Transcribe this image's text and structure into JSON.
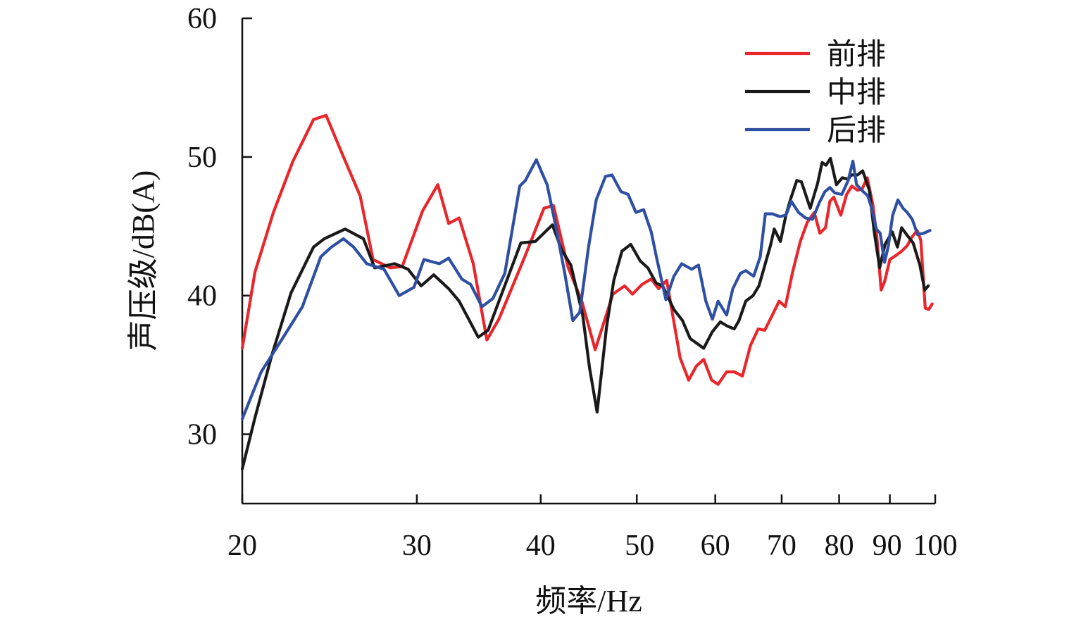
{
  "chart_data": {
    "type": "line",
    "xlabel": "频率/Hz",
    "ylabel": "声压级/dB(A)",
    "x_scale": "log",
    "xlim": [
      20,
      100
    ],
    "ylim": [
      25,
      60
    ],
    "x_ticks": [
      20,
      30,
      40,
      50,
      60,
      70,
      80,
      90,
      100
    ],
    "x_tick_labels": [
      "20",
      "30",
      "40",
      "50",
      "60",
      "70",
      "80",
      "90",
      "100"
    ],
    "y_ticks": [
      30,
      40,
      50,
      60
    ],
    "y_tick_labels": [
      "30",
      "40",
      "50",
      "60"
    ],
    "grid": false,
    "legend_position": "top-right",
    "series": [
      {
        "name": "前排",
        "color": "#e8262b",
        "points": [
          [
            20,
            36.2
          ],
          [
            20.6,
            41.7
          ],
          [
            21.5,
            46.0
          ],
          [
            22.5,
            49.7
          ],
          [
            23.6,
            52.7
          ],
          [
            24.3,
            53.0
          ],
          [
            25.2,
            50.3
          ],
          [
            26.3,
            47.2
          ],
          [
            27.1,
            42.6
          ],
          [
            28.2,
            42.0
          ],
          [
            29.0,
            42.1
          ],
          [
            30.4,
            46.1
          ],
          [
            31.5,
            48.0
          ],
          [
            32.3,
            45.2
          ],
          [
            33.1,
            45.6
          ],
          [
            34.2,
            42.3
          ],
          [
            35.3,
            36.8
          ],
          [
            36.3,
            38.3
          ],
          [
            38.6,
            42.9
          ],
          [
            40.3,
            46.3
          ],
          [
            41.2,
            46.5
          ],
          [
            42.6,
            42.1
          ],
          [
            44.0,
            39.6
          ],
          [
            45.4,
            36.1
          ],
          [
            47.3,
            40.1
          ],
          [
            48.6,
            40.7
          ],
          [
            49.5,
            40.1
          ],
          [
            50.6,
            40.8
          ],
          [
            51.7,
            41.2
          ],
          [
            52.6,
            40.5
          ],
          [
            53.6,
            41.1
          ],
          [
            55.3,
            35.5
          ],
          [
            56.4,
            33.9
          ],
          [
            57.4,
            34.9
          ],
          [
            58.4,
            35.4
          ],
          [
            59.5,
            33.9
          ],
          [
            60.4,
            33.6
          ],
          [
            61.6,
            34.5
          ],
          [
            62.7,
            34.5
          ],
          [
            63.9,
            34.2
          ],
          [
            65.1,
            36.4
          ],
          [
            66.3,
            37.6
          ],
          [
            67.3,
            37.5
          ],
          [
            68.4,
            38.5
          ],
          [
            69.6,
            39.6
          ],
          [
            70.6,
            39.2
          ],
          [
            71.8,
            41.7
          ],
          [
            73.1,
            43.9
          ],
          [
            74.3,
            45.3
          ],
          [
            75.5,
            46.0
          ],
          [
            76.5,
            44.5
          ],
          [
            77.5,
            44.9
          ],
          [
            78.3,
            46.8
          ],
          [
            79.0,
            47.1
          ],
          [
            80.3,
            45.8
          ],
          [
            81.4,
            47.3
          ],
          [
            82.4,
            47.9
          ],
          [
            83.5,
            47.6
          ],
          [
            84.4,
            47.7
          ],
          [
            85.4,
            48.5
          ],
          [
            86.5,
            46.6
          ],
          [
            87.3,
            44.3
          ],
          [
            88.2,
            40.4
          ],
          [
            88.9,
            41.0
          ],
          [
            90.0,
            42.6
          ],
          [
            91.3,
            42.9
          ],
          [
            92.5,
            43.2
          ],
          [
            93.7,
            43.6
          ],
          [
            94.7,
            44.2
          ],
          [
            95.9,
            44.7
          ],
          [
            96.7,
            44.0
          ],
          [
            97.7,
            39.1
          ],
          [
            98.5,
            39.0
          ],
          [
            99.3,
            39.4
          ]
        ]
      },
      {
        "name": "中排",
        "color": "#1a1a1a",
        "points": [
          [
            20,
            27.5
          ],
          [
            20.6,
            31.2
          ],
          [
            21.4,
            35.6
          ],
          [
            22.4,
            40.2
          ],
          [
            23.6,
            43.5
          ],
          [
            24.2,
            44.1
          ],
          [
            25.4,
            44.8
          ],
          [
            26.5,
            44.1
          ],
          [
            27.2,
            42.0
          ],
          [
            28.5,
            42.3
          ],
          [
            29.4,
            41.9
          ],
          [
            30.3,
            40.7
          ],
          [
            31.2,
            41.5
          ],
          [
            32.3,
            40.5
          ],
          [
            33.1,
            39.6
          ],
          [
            34.6,
            37.0
          ],
          [
            35.4,
            37.5
          ],
          [
            37.1,
            41.4
          ],
          [
            38.2,
            43.8
          ],
          [
            39.5,
            43.9
          ],
          [
            41.1,
            45.1
          ],
          [
            42.0,
            43.3
          ],
          [
            42.9,
            42.2
          ],
          [
            44.1,
            38.6
          ],
          [
            44.8,
            34.8
          ],
          [
            45.6,
            31.6
          ],
          [
            46.6,
            37.7
          ],
          [
            47.4,
            41.1
          ],
          [
            48.3,
            43.2
          ],
          [
            49.3,
            43.7
          ],
          [
            50.4,
            42.5
          ],
          [
            51.3,
            42.0
          ],
          [
            52.3,
            40.9
          ],
          [
            53.1,
            40.7
          ],
          [
            54.5,
            39.0
          ],
          [
            55.6,
            38.2
          ],
          [
            56.6,
            36.9
          ],
          [
            58.4,
            36.2
          ],
          [
            59.6,
            37.4
          ],
          [
            60.7,
            38.1
          ],
          [
            61.7,
            37.8
          ],
          [
            62.7,
            37.6
          ],
          [
            63.4,
            38.2
          ],
          [
            64.4,
            39.6
          ],
          [
            65.5,
            40.0
          ],
          [
            66.4,
            40.7
          ],
          [
            67.2,
            42.0
          ],
          [
            68.2,
            43.6
          ],
          [
            68.8,
            44.8
          ],
          [
            69.8,
            43.9
          ],
          [
            70.7,
            45.8
          ],
          [
            71.5,
            47.0
          ],
          [
            72.5,
            48.3
          ],
          [
            73.3,
            48.2
          ],
          [
            74.8,
            46.3
          ],
          [
            76.1,
            48.1
          ],
          [
            76.9,
            49.6
          ],
          [
            77.6,
            49.4
          ],
          [
            78.4,
            49.9
          ],
          [
            79.5,
            48.0
          ],
          [
            80.6,
            48.5
          ],
          [
            81.7,
            48.4
          ],
          [
            82.3,
            48.7
          ],
          [
            83.5,
            48.7
          ],
          [
            84.5,
            49.0
          ],
          [
            85.8,
            47.6
          ],
          [
            86.8,
            44.6
          ],
          [
            87.9,
            42.0
          ],
          [
            89.0,
            43.7
          ],
          [
            90.5,
            44.6
          ],
          [
            91.6,
            43.5
          ],
          [
            92.5,
            44.9
          ],
          [
            93.8,
            44.3
          ],
          [
            95.0,
            43.8
          ],
          [
            96.5,
            42.2
          ],
          [
            97.6,
            40.4
          ],
          [
            98.4,
            40.7
          ]
        ]
      },
      {
        "name": "后排",
        "color": "#2f4fa2",
        "points": [
          [
            20,
            31.1
          ],
          [
            20.9,
            34.5
          ],
          [
            22.0,
            37.0
          ],
          [
            23.0,
            39.2
          ],
          [
            24.0,
            42.8
          ],
          [
            24.6,
            43.5
          ],
          [
            25.3,
            44.1
          ],
          [
            25.9,
            43.5
          ],
          [
            26.7,
            42.3
          ],
          [
            27.8,
            41.9
          ],
          [
            28.8,
            40.0
          ],
          [
            29.8,
            40.6
          ],
          [
            30.5,
            42.6
          ],
          [
            31.6,
            42.3
          ],
          [
            32.3,
            42.7
          ],
          [
            33.3,
            41.2
          ],
          [
            34.0,
            40.8
          ],
          [
            34.9,
            39.2
          ],
          [
            35.8,
            39.8
          ],
          [
            36.8,
            41.6
          ],
          [
            38.1,
            47.9
          ],
          [
            38.6,
            48.3
          ],
          [
            39.6,
            49.8
          ],
          [
            40.6,
            48.0
          ],
          [
            41.4,
            45.1
          ],
          [
            42.3,
            41.6
          ],
          [
            43.1,
            38.2
          ],
          [
            43.8,
            38.8
          ],
          [
            44.7,
            43.5
          ],
          [
            45.5,
            46.9
          ],
          [
            46.5,
            48.6
          ],
          [
            47.2,
            48.7
          ],
          [
            48.2,
            47.5
          ],
          [
            49.0,
            47.3
          ],
          [
            49.9,
            46.0
          ],
          [
            50.8,
            46.2
          ],
          [
            51.7,
            44.6
          ],
          [
            52.4,
            42.6
          ],
          [
            53.5,
            39.7
          ],
          [
            54.5,
            41.4
          ],
          [
            55.5,
            42.3
          ],
          [
            56.8,
            41.9
          ],
          [
            57.7,
            42.2
          ],
          [
            58.7,
            39.6
          ],
          [
            59.6,
            38.3
          ],
          [
            60.4,
            39.6
          ],
          [
            61.6,
            38.6
          ],
          [
            62.5,
            40.5
          ],
          [
            63.6,
            41.6
          ],
          [
            64.4,
            41.8
          ],
          [
            65.6,
            41.4
          ],
          [
            66.6,
            42.8
          ],
          [
            67.4,
            45.9
          ],
          [
            68.5,
            45.9
          ],
          [
            69.7,
            45.7
          ],
          [
            70.7,
            45.8
          ],
          [
            71.6,
            46.8
          ],
          [
            72.8,
            46.0
          ],
          [
            74.0,
            45.6
          ],
          [
            75.2,
            45.5
          ],
          [
            76.4,
            46.7
          ],
          [
            77.4,
            47.5
          ],
          [
            78.3,
            47.8
          ],
          [
            79.2,
            47.4
          ],
          [
            80.5,
            47.3
          ],
          [
            81.7,
            48.3
          ],
          [
            82.6,
            49.7
          ],
          [
            83.3,
            48.0
          ],
          [
            84.3,
            47.6
          ],
          [
            85.5,
            47.2
          ],
          [
            86.3,
            46.3
          ],
          [
            87.2,
            44.8
          ],
          [
            88.0,
            44.5
          ],
          [
            88.9,
            42.4
          ],
          [
            89.7,
            43.6
          ],
          [
            90.6,
            45.8
          ],
          [
            91.7,
            46.9
          ],
          [
            92.8,
            46.3
          ],
          [
            93.7,
            46.0
          ],
          [
            94.8,
            45.5
          ],
          [
            96.0,
            44.4
          ],
          [
            97.4,
            44.5
          ],
          [
            98.8,
            44.7
          ]
        ]
      }
    ]
  }
}
